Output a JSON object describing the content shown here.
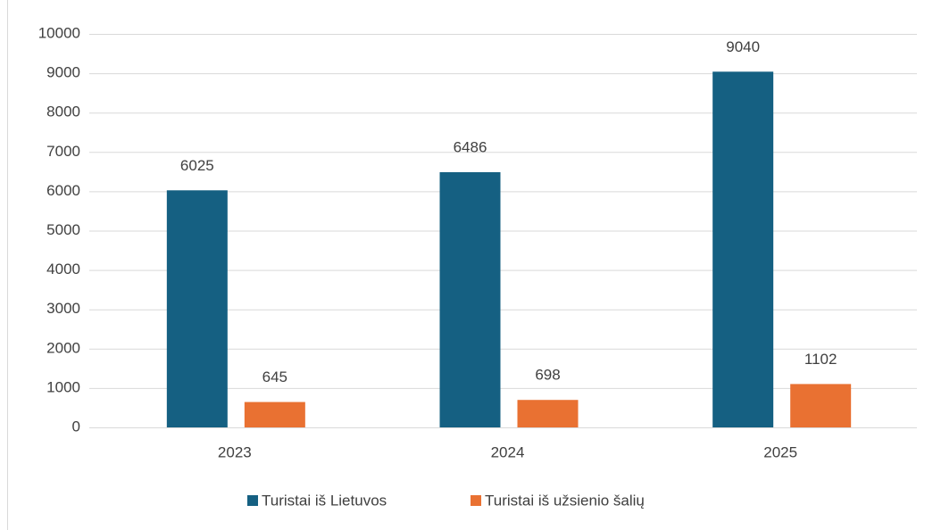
{
  "chart_data": {
    "type": "bar",
    "categories": [
      "2023",
      "2024",
      "2025"
    ],
    "series": [
      {
        "name": "Turistai iš Lietuvos",
        "color": "#156082",
        "values": [
          6025,
          6486,
          9040
        ]
      },
      {
        "name": "Turistai iš užsienio šalių",
        "color": "#e97132",
        "values": [
          645,
          698,
          1102
        ]
      }
    ],
    "ylim": [
      0,
      10000
    ],
    "yticks": [
      0,
      1000,
      2000,
      3000,
      4000,
      5000,
      6000,
      7000,
      8000,
      9000,
      10000
    ],
    "grid": true,
    "legend": "bottom"
  }
}
